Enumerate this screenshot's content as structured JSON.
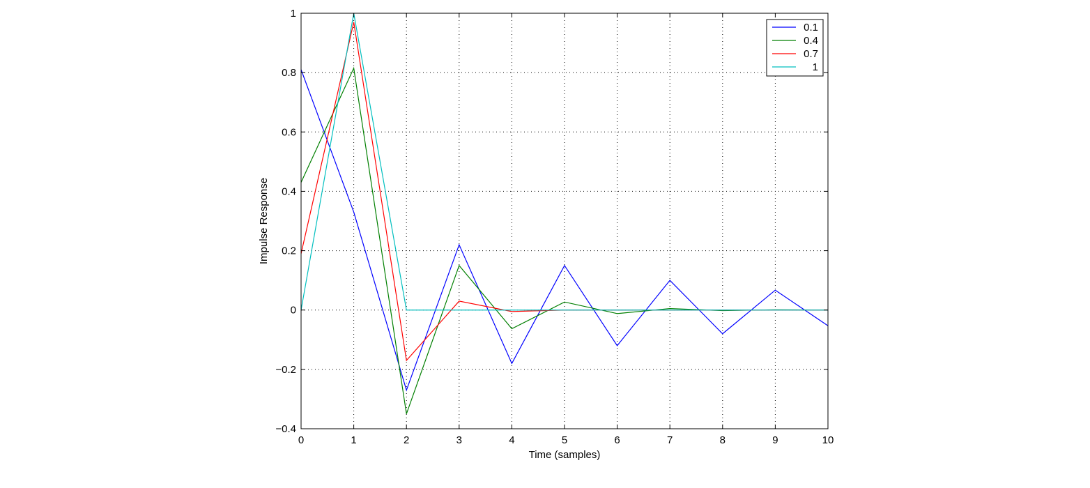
{
  "chart_data": {
    "type": "line",
    "title": "",
    "xlabel": "Time (samples)",
    "ylabel": "Impulse Response",
    "xlim": [
      0,
      10
    ],
    "ylim": [
      -0.4,
      1
    ],
    "xticks": [
      0,
      1,
      2,
      3,
      4,
      5,
      6,
      7,
      8,
      9,
      10
    ],
    "yticks": [
      -0.4,
      -0.2,
      0,
      0.2,
      0.4,
      0.6,
      0.8,
      1
    ],
    "xtick_labels": [
      "0",
      "1",
      "2",
      "3",
      "4",
      "5",
      "6",
      "7",
      "8",
      "9",
      "10"
    ],
    "ytick_labels": [
      "−0.4",
      "−0.2",
      "0",
      "0.2",
      "0.4",
      "0.6",
      "0.8",
      "1"
    ],
    "grid": true,
    "legend_position": "top-right",
    "x": [
      0,
      1,
      2,
      3,
      4,
      5,
      6,
      7,
      8,
      9,
      10
    ],
    "series": [
      {
        "name": "0.1",
        "color": "#0000ff",
        "values": [
          0.81,
          0.33,
          -0.27,
          0.22,
          -0.18,
          0.15,
          -0.12,
          0.1,
          -0.08,
          0.067,
          -0.053
        ]
      },
      {
        "name": "0.4",
        "color": "#007f00",
        "values": [
          0.43,
          0.815,
          -0.35,
          0.15,
          -0.063,
          0.027,
          -0.012,
          0.005,
          -0.002,
          0.001,
          0.0
        ]
      },
      {
        "name": "0.7",
        "color": "#ff0000",
        "values": [
          0.19,
          0.97,
          -0.17,
          0.03,
          -0.005,
          0.0,
          0.0,
          0.0,
          0.0,
          0.0,
          0.0
        ]
      },
      {
        "name": "1",
        "color": "#00bfbf",
        "values": [
          0.0,
          1.0,
          0.0,
          0.0,
          0.0,
          0.0,
          0.0,
          0.0,
          0.0,
          0.0,
          0.0
        ]
      }
    ]
  }
}
